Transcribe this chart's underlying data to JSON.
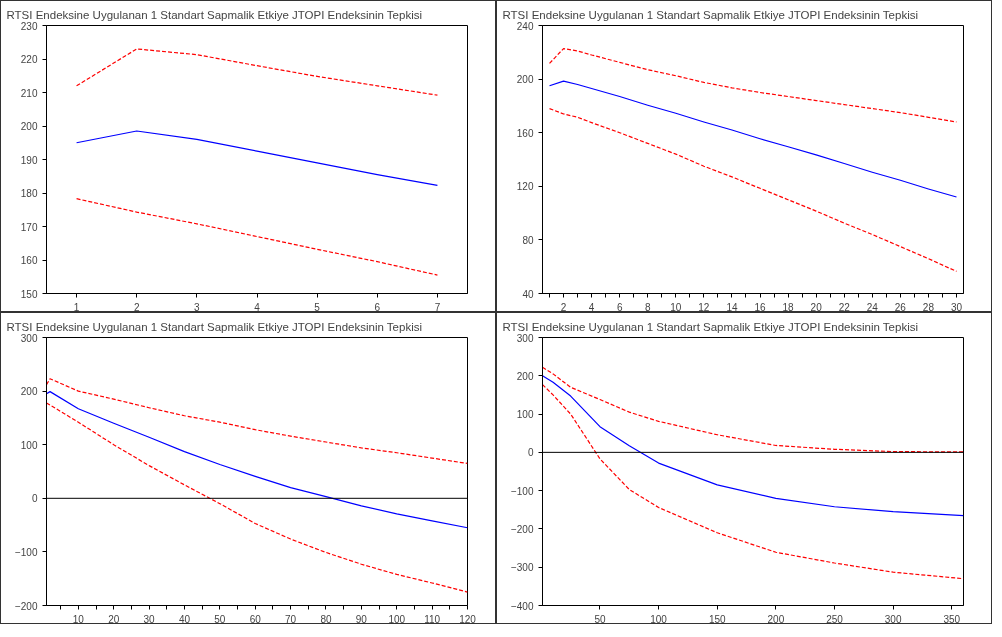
{
  "chart_data": [
    {
      "type": "line",
      "title": "RTSI Endeksine Uygulanan 1 Standart Sapmalik Etkiye JTOPI Endeksinin Tepkisi",
      "x": [
        1,
        2,
        3,
        4,
        5,
        6,
        7
      ],
      "xlim": [
        0.5,
        7.5
      ],
      "xticks": [
        1,
        2,
        3,
        4,
        5,
        6,
        7
      ],
      "ylim": [
        150,
        230
      ],
      "yticks": [
        150,
        160,
        170,
        180,
        190,
        200,
        210,
        220,
        230
      ],
      "series": [
        {
          "color": "#0000ff",
          "line_style": "solid",
          "values": [
            195,
            198.5,
            196,
            192.5,
            189,
            185.5,
            182.3
          ]
        },
        {
          "color": "#ff0000",
          "line_style": "dashed",
          "values": [
            212,
            223,
            221.3,
            218,
            214.8,
            212,
            209.2
          ]
        },
        {
          "color": "#ff0000",
          "line_style": "dashed",
          "values": [
            178.3,
            174.3,
            170.8,
            167,
            163.2,
            159.5,
            155.5
          ]
        }
      ]
    },
    {
      "type": "line",
      "title": "RTSI Endeksine Uygulanan 1 Standart Sapmalik Etkiye JTOPI Endeksinin Tepkisi",
      "x": [
        1,
        2,
        3,
        4,
        6,
        8,
        10,
        12,
        14,
        16,
        18,
        20,
        22,
        24,
        26,
        28,
        30
      ],
      "xlim": [
        0.5,
        30.5
      ],
      "xticks": [
        {
          "value": 1,
          "label": null
        },
        2,
        {
          "value": 3,
          "label": null
        },
        4,
        {
          "value": 5,
          "label": null
        },
        6,
        {
          "value": 7,
          "label": null
        },
        8,
        {
          "value": 9,
          "label": null
        },
        10,
        {
          "value": 11,
          "label": null
        },
        12,
        {
          "value": 13,
          "label": null
        },
        14,
        {
          "value": 15,
          "label": null
        },
        16,
        {
          "value": 17,
          "label": null
        },
        18,
        {
          "value": 19,
          "label": null
        },
        20,
        {
          "value": 21,
          "label": null
        },
        22,
        {
          "value": 23,
          "label": null
        },
        24,
        {
          "value": 25,
          "label": null
        },
        26,
        {
          "value": 27,
          "label": null
        },
        28,
        {
          "value": 29,
          "label": null
        },
        30
      ],
      "ylim": [
        40,
        240
      ],
      "yticks": [
        40,
        80,
        120,
        160,
        200,
        240
      ],
      "series": [
        {
          "color": "#0000ff",
          "line_style": "solid",
          "values": [
            195,
            198.5,
            196,
            193,
            187,
            180.5,
            174.5,
            168,
            162,
            155.5,
            149.5,
            143.5,
            137,
            130.5,
            124.5,
            118,
            112
          ]
        },
        {
          "color": "#ff0000",
          "line_style": "dashed",
          "values": [
            211.7,
            222.8,
            221,
            218,
            212.5,
            207,
            202.5,
            197.5,
            193.5,
            190,
            187,
            184,
            181,
            178,
            175,
            171.5,
            168
          ]
        },
        {
          "color": "#ff0000",
          "line_style": "dashed",
          "values": [
            178,
            174,
            171.5,
            167.5,
            160,
            152,
            144,
            135,
            127,
            118.5,
            110,
            101.5,
            92.5,
            84,
            75,
            66,
            56.5
          ]
        }
      ]
    },
    {
      "type": "line",
      "title": "RTSI Endeksine Uygulanan 1 Standart Sapmalik Etkiye JTOPI Endeksinin Tepkisi",
      "x": [
        1,
        2,
        10,
        20,
        30,
        40,
        50,
        60,
        70,
        80,
        90,
        100,
        110,
        120
      ],
      "xlim": [
        1,
        120
      ],
      "xticks": [
        {
          "value": 5,
          "label": null
        },
        10,
        {
          "value": 15,
          "label": null
        },
        20,
        {
          "value": 25,
          "label": null
        },
        30,
        {
          "value": 35,
          "label": null
        },
        40,
        {
          "value": 45,
          "label": null
        },
        50,
        {
          "value": 55,
          "label": null
        },
        60,
        {
          "value": 65,
          "label": null
        },
        70,
        {
          "value": 75,
          "label": null
        },
        80,
        {
          "value": 85,
          "label": null
        },
        90,
        {
          "value": 95,
          "label": null
        },
        100,
        {
          "value": 105,
          "label": null
        },
        110,
        {
          "value": 115,
          "label": null
        },
        120
      ],
      "ylim": [
        -200,
        300
      ],
      "yticks": [
        -200,
        -100,
        0,
        100,
        200,
        300
      ],
      "ref_lines": [
        {
          "axis": "y",
          "value": 0,
          "color": "#000000"
        }
      ],
      "series": [
        {
          "color": "#0000ff",
          "line_style": "solid",
          "values": [
            195,
            199,
            167,
            140,
            114,
            87,
            63,
            41,
            20,
            3,
            -14,
            -29,
            -42,
            -55
          ]
        },
        {
          "color": "#ff0000",
          "line_style": "dashed",
          "values": [
            212,
            223,
            200,
            185,
            169,
            154,
            142,
            128,
            116,
            105,
            94,
            85,
            75,
            65
          ]
        },
        {
          "color": "#ff0000",
          "line_style": "dashed",
          "values": [
            178,
            174,
            142,
            100,
            61,
            25,
            -10,
            -47,
            -76,
            -101,
            -123,
            -142,
            -158,
            -175
          ]
        }
      ]
    },
    {
      "type": "line",
      "title": "RTSI Endeksine Uygulanan 1 Standart Sapmalik Etkiye JTOPI Endeksinin Tepkisi",
      "x": [
        1,
        10,
        25,
        50,
        75,
        100,
        150,
        200,
        250,
        300,
        360
      ],
      "xlim": [
        1,
        360
      ],
      "xticks": [
        50,
        100,
        150,
        200,
        250,
        300,
        350
      ],
      "ylim": [
        -400,
        300
      ],
      "yticks": [
        -400,
        -300,
        -200,
        -100,
        0,
        100,
        200,
        300
      ],
      "ref_lines": [
        {
          "axis": "y",
          "value": 0,
          "color": "#000000"
        }
      ],
      "series": [
        {
          "color": "#0000ff",
          "line_style": "solid",
          "values": [
            200,
            183,
            147,
            67,
            17,
            -28,
            -85,
            -120,
            -142,
            -155,
            -165
          ]
        },
        {
          "color": "#ff0000",
          "line_style": "dashed",
          "values": [
            222,
            205,
            170,
            138,
            105,
            81,
            46,
            18,
            8,
            2,
            1
          ]
        },
        {
          "color": "#ff0000",
          "line_style": "dashed",
          "values": [
            177,
            150,
            100,
            -17,
            -97,
            -144,
            -210,
            -261,
            -289,
            -313,
            -330
          ]
        }
      ]
    }
  ]
}
